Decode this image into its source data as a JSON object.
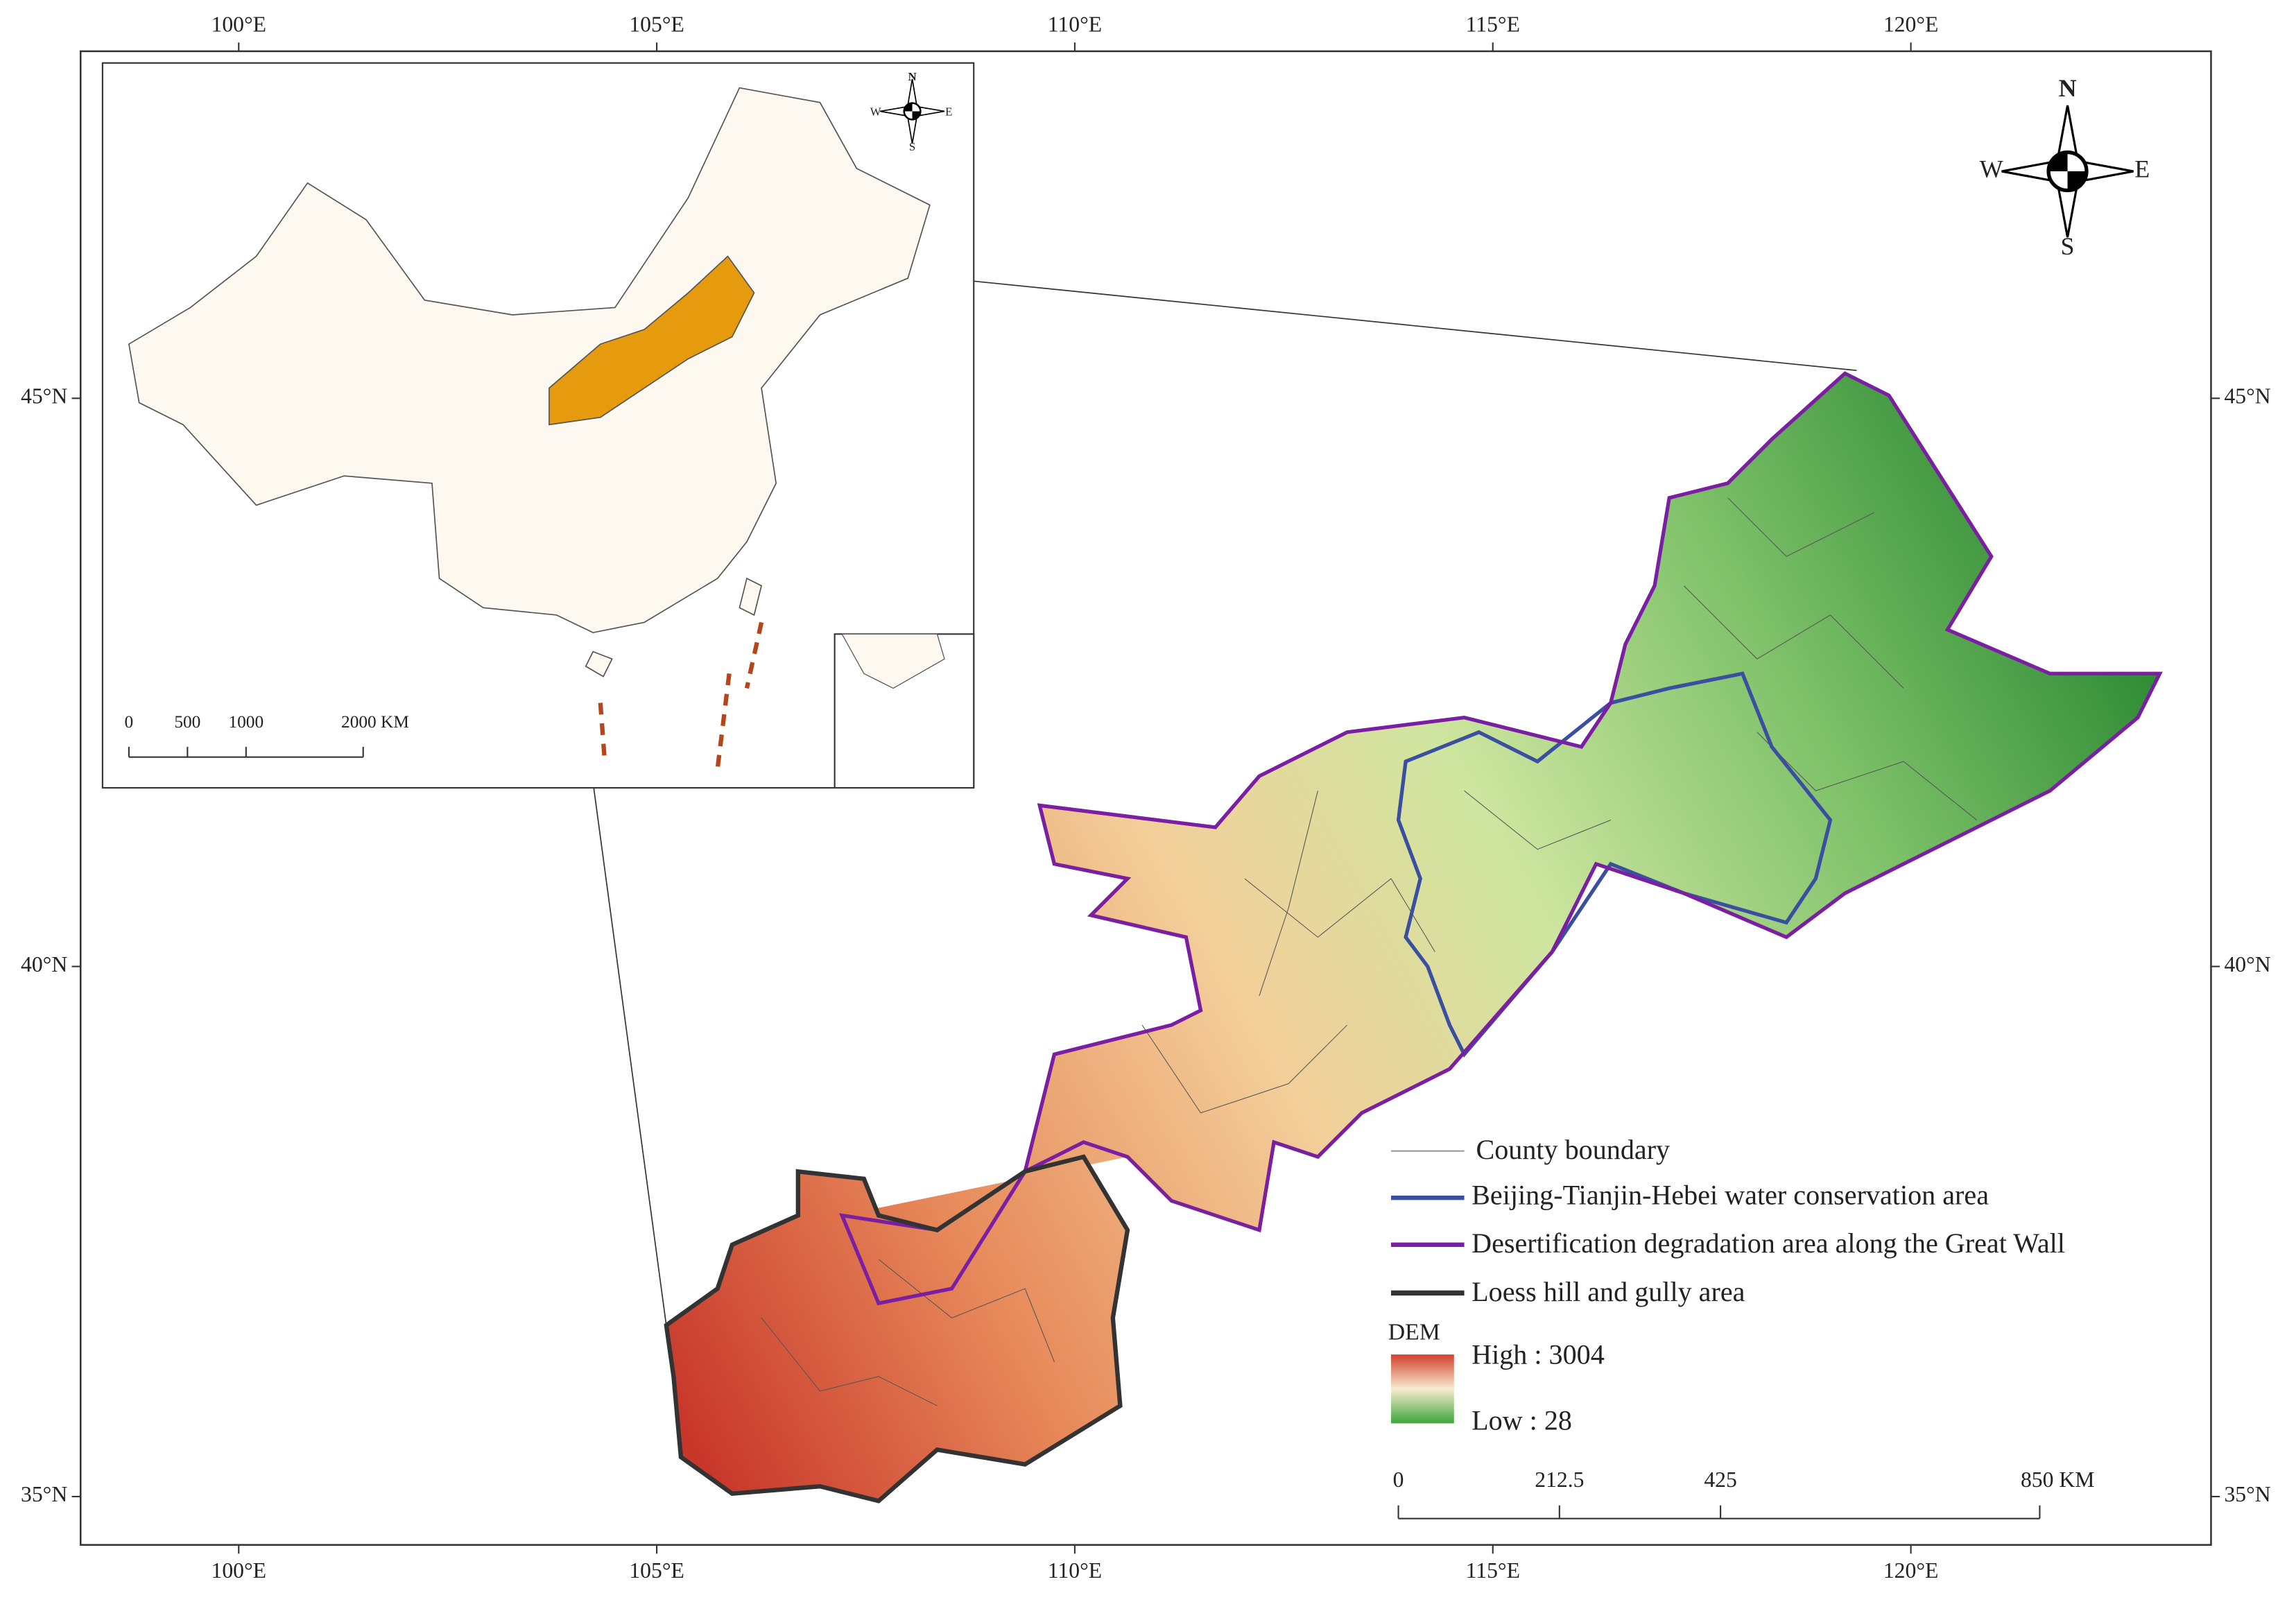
{
  "map": {
    "top_axis": [
      "100°E",
      "105°E",
      "110°E",
      "115°E",
      "120°E"
    ],
    "bottom_axis": [
      "100°E",
      "105°E",
      "110°E",
      "115°E",
      "120°E"
    ],
    "left_axis": [
      "45°N",
      "40°N",
      "35°N"
    ],
    "right_axis": [
      "45°N",
      "40°N",
      "35°N"
    ],
    "legend": {
      "items": [
        "County boundary",
        "Beijing-Tianjin-Hebei water conservation area",
        "Desertification degradation area along the Great Wall",
        "Loess hill and gully area"
      ],
      "dem_title": "DEM",
      "dem_high": "High : 3004",
      "dem_low": "Low : 28"
    },
    "scale_bar": {
      "labels": [
        "0",
        "212.5",
        "425",
        "850 KM"
      ]
    },
    "compass": {
      "n": "N",
      "s": "S",
      "w": "W",
      "e": "E"
    },
    "inset": {
      "scale_bar": {
        "labels": [
          "0",
          "500",
          "1000",
          "2000 KM"
        ]
      },
      "compass": {
        "n": "N",
        "s": "S",
        "w": "W",
        "e": "E"
      }
    }
  }
}
